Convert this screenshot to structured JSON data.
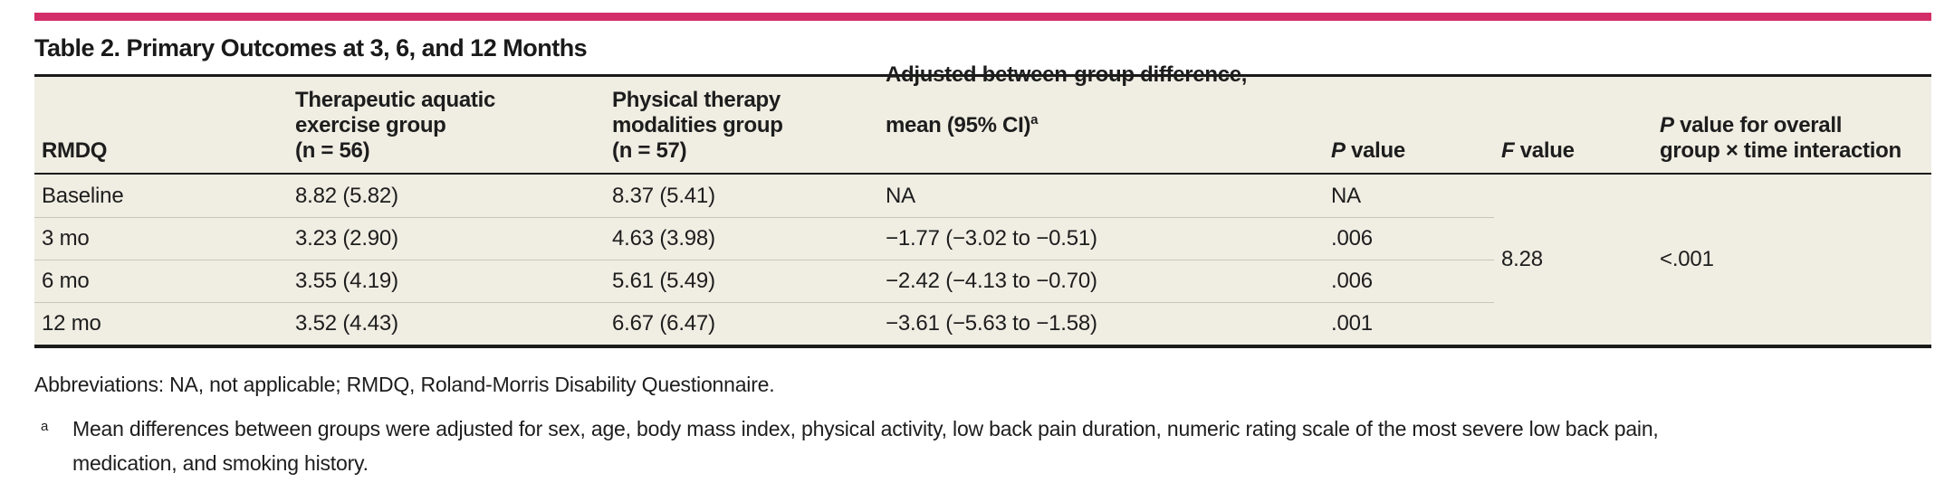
{
  "accent_color": "#d42e68",
  "title": "Table 2. Primary Outcomes at 3, 6, and 12 Months",
  "table": {
    "columns": {
      "rmdq": "RMDQ",
      "aquatic_group": "Therapeutic aquatic\nexercise group\n(n = 56)",
      "modalities_group": "Physical therapy\nmodalities group\n(n = 57)",
      "difference_line1": "Adjusted between-group difference,",
      "difference_line2": "mean (95% CI)",
      "difference_sup": "a",
      "p_value_italic": "P",
      "p_value_rest": " value",
      "f_value_italic": "F",
      "f_value_rest": " value",
      "interaction_italic": "P",
      "interaction_rest": " value for overall\ngroup × time interaction"
    },
    "rows": [
      {
        "label": "Baseline",
        "aquatic": "8.82 (5.82)",
        "modalities": "8.37 (5.41)",
        "difference": "NA",
        "p_value": "NA"
      },
      {
        "label": "3 mo",
        "aquatic": "3.23 (2.90)",
        "modalities": "4.63 (3.98)",
        "difference": "−1.77 (−3.02 to −0.51)",
        "p_value": ".006"
      },
      {
        "label": "6 mo",
        "aquatic": "3.55 (4.19)",
        "modalities": "5.61 (5.49)",
        "difference": "−2.42 (−4.13 to −0.70)",
        "p_value": ".006"
      },
      {
        "label": "12 mo",
        "aquatic": "3.52 (4.43)",
        "modalities": "6.67 (6.47)",
        "difference": "−3.61 (−5.63 to −1.58)",
        "p_value": ".001"
      }
    ],
    "f_value": "8.28",
    "interaction_p_value": "<.001"
  },
  "footnotes": {
    "abbreviations": "Abbreviations: NA, not applicable; RMDQ, Roland-Morris Disability Questionnaire.",
    "marker": "a",
    "text": "Mean differences between groups were adjusted for sex, age, body mass index, physical activity, low back pain duration, numeric rating scale of the most severe low back pain,\nmedication, and smoking history."
  }
}
